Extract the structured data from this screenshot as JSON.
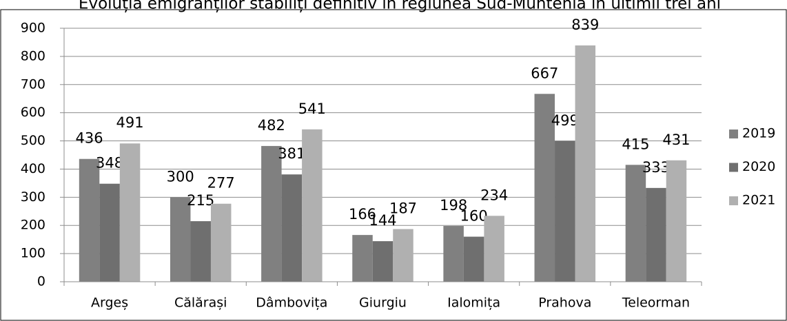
{
  "chart_data": {
    "type": "bar",
    "title": "Evoluția emigranților stabiliți definitiv în regiunea Sud-Muntenia  în ultimii trei ani",
    "categories": [
      "Argeș",
      "Călărași",
      "Dâmbovița",
      "Giurgiu",
      "Ialomița",
      "Prahova",
      "Teleorman"
    ],
    "series": [
      {
        "name": "2019",
        "color": "#808080",
        "values": [
          436,
          300,
          482,
          166,
          198,
          667,
          415
        ]
      },
      {
        "name": "2020",
        "color": "#6f6f6f",
        "values": [
          348,
          215,
          381,
          144,
          160,
          499,
          333
        ]
      },
      {
        "name": "2021",
        "color": "#b0b0b0",
        "values": [
          491,
          277,
          541,
          187,
          234,
          839,
          431
        ]
      }
    ],
    "ylim": [
      0,
      900
    ],
    "yticks": [
      0,
      100,
      200,
      300,
      400,
      500,
      600,
      700,
      800,
      900
    ],
    "grid": true,
    "legend": "right"
  }
}
